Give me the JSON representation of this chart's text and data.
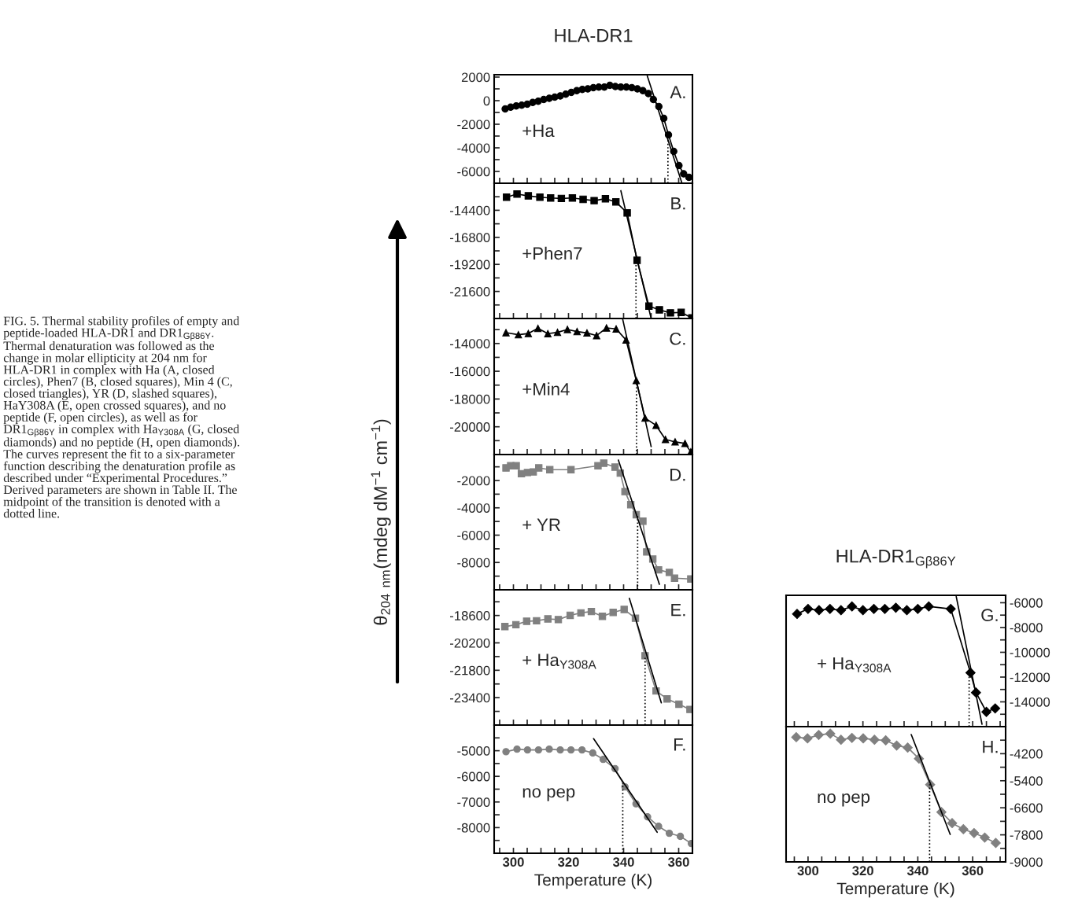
{
  "chart_data": [
    {
      "type": "line",
      "title": "HLA-DR1",
      "marker": "circle",
      "annotations": [
        "A.",
        "+Ha",
        "FIG. 5. Thermal stability profiles of empty and peptide-loaded HLA-DR1 and DR1$_{Gβ86Y}$. Thermal denaturation was followed as the change in molar ellipticity at 204 nm for HLA-DR1 in complex with Ha (A, closed circles), Phen7 (B, closed squares), Min 4 (C, closed triangles), YR (D, slashed squares), HaY308A (E, open crossed squares), and no peptide (F, open circles), as well as for DR1$_{Gβ86Y}$ in complex with Ha$_{Y308A}$ (G, closed diamonds) and no peptide (H, open diamonds). The curves represent the fit to a six-parameter function describing the denaturation profile as described under “Experimental Procedures.” Derived parameters are shown in Table II. The midpoint of the transition is denoted with a dotted line."
      ],
      "series": [
        {
          "color": "#000000",
          "x": [
            297,
            299,
            301,
            303,
            305,
            307,
            309,
            311,
            313,
            315,
            317,
            319,
            321,
            323,
            325,
            327,
            329,
            331,
            333,
            335,
            337,
            339,
            341,
            343,
            345,
            347,
            349,
            350.8,
            352.8,
            354.6,
            356.3,
            358.2,
            360.1,
            361.8,
            363.7
          ],
          "values": [
            -700,
            -550,
            -450,
            -380,
            -300,
            -150,
            -50,
            100,
            200,
            300,
            400,
            550,
            700,
            850,
            950,
            1000,
            1100,
            1150,
            1150,
            1300,
            1200,
            1150,
            1150,
            1100,
            1000,
            850,
            600,
            100,
            -500,
            -1500,
            -2900,
            -4300,
            -5500,
            -6200,
            -6500
          ]
        },
        {
          "color": "#000000",
          "marker": "none",
          "x": [
            348.6,
            361.2
          ],
          "values": [
            2100,
            -7000
          ]
        }
      ],
      "ref_lines": [
        {
          "axis": "x",
          "value": 356.1,
          "line_style": "dotted"
        }
      ],
      "xlim": [
        293,
        365
      ],
      "xticks": [
        {
          "value": 295,
          "label": null
        },
        300,
        {
          "value": 305,
          "label": null
        },
        {
          "value": 310,
          "label": null
        },
        {
          "value": 315,
          "label": null
        },
        320,
        {
          "value": 325,
          "label": null
        },
        {
          "value": 330,
          "label": null
        },
        {
          "value": 335,
          "label": null
        },
        340,
        {
          "value": 345,
          "label": null
        },
        {
          "value": 350,
          "label": null
        },
        {
          "value": 355,
          "label": null
        },
        360
      ],
      "ylim": [
        -7000,
        2200
      ],
      "yticks": [
        2000,
        {
          "value": 1000,
          "label": null
        },
        0,
        {
          "value": -1000,
          "label": null
        },
        -2000,
        {
          "value": -3000,
          "label": null
        },
        -4000,
        {
          "value": -5000,
          "label": null
        },
        -6000
      ],
      "tick_labels": "y"
    },
    {
      "type": "line",
      "marker": "square",
      "annotations": [
        "B.",
        "+Phen7"
      ],
      "series": [
        {
          "color": "#000000",
          "x": [
            297.5,
            301.3,
            305.4,
            309.6,
            313.5,
            317.4,
            321.4,
            325.3,
            329.3,
            333.4,
            337.2,
            341.3,
            344.9,
            349.2,
            353,
            357,
            360.9,
            364.8
          ],
          "values": [
            -13240,
            -12960,
            -13120,
            -13240,
            -13310,
            -13350,
            -13310,
            -13430,
            -13540,
            -13380,
            -13660,
            -14630,
            -18840,
            -22900,
            -23230,
            -23500,
            -23460,
            -23950
          ]
        },
        {
          "color": "#000000",
          "marker": "none",
          "x": [
            339,
            350
          ],
          "values": [
            -12660,
            -24000
          ]
        }
      ],
      "ref_lines": [
        {
          "axis": "x",
          "value": 344.5,
          "line_style": "dotted"
        }
      ],
      "xlim": [
        293,
        365
      ],
      "xticks": [
        {
          "value": 295,
          "label": null
        },
        300,
        {
          "value": 305,
          "label": null
        },
        {
          "value": 310,
          "label": null
        },
        {
          "value": 315,
          "label": null
        },
        320,
        {
          "value": 325,
          "label": null
        },
        {
          "value": 330,
          "label": null
        },
        {
          "value": 335,
          "label": null
        },
        340,
        {
          "value": 345,
          "label": null
        },
        {
          "value": 350,
          "label": null
        },
        {
          "value": 355,
          "label": null
        },
        360
      ],
      "ylim": [
        -24000,
        -12000
      ],
      "yticks": [
        {
          "value": -13200,
          "label": null
        },
        -14400,
        {
          "value": -15600,
          "label": null
        },
        -16800,
        {
          "value": -18000,
          "label": null
        },
        -19200,
        {
          "value": -20400,
          "label": null
        },
        -21600,
        {
          "value": -22800,
          "label": null
        }
      ],
      "tick_labels": "y"
    },
    {
      "type": "line",
      "marker": "triangle",
      "annotations": [
        "C.",
        "+Min4"
      ],
      "series": [
        {
          "color": "#000000",
          "x": [
            297.3,
            301.8,
            305.4,
            308.9,
            312.5,
            316,
            319.6,
            323.1,
            326.7,
            330.2,
            333.8,
            337.3,
            340.9,
            344.6,
            347.8,
            351.8,
            355.2,
            358.7,
            362.3,
            364.4
          ],
          "values": [
            -13220,
            -13370,
            -13280,
            -12910,
            -13290,
            -13200,
            -12990,
            -13140,
            -13240,
            -13430,
            -12880,
            -12950,
            -13750,
            -16670,
            -19370,
            -19900,
            -20910,
            -21090,
            -21200,
            -21810
          ]
        },
        {
          "color": "#000000",
          "marker": "none",
          "x": [
            339.7,
            350
          ],
          "values": [
            -12280,
            -21430
          ]
        }
      ],
      "ref_lines": [
        {
          "axis": "x",
          "value": 344.7,
          "line_style": "dotted"
        }
      ],
      "xlim": [
        293,
        365
      ],
      "xticks": [
        {
          "value": 295,
          "label": null
        },
        300,
        {
          "value": 305,
          "label": null
        },
        {
          "value": 310,
          "label": null
        },
        {
          "value": 315,
          "label": null
        },
        320,
        {
          "value": 325,
          "label": null
        },
        {
          "value": 330,
          "label": null
        },
        {
          "value": 335,
          "label": null
        },
        340,
        {
          "value": 345,
          "label": null
        },
        {
          "value": 350,
          "label": null
        },
        {
          "value": 355,
          "label": null
        },
        360
      ],
      "ylim": [
        -22000,
        -12200
      ],
      "yticks": [
        {
          "value": -13000,
          "label": null
        },
        -14000,
        {
          "value": -15000,
          "label": null
        },
        -16000,
        {
          "value": -17000,
          "label": null
        },
        -18000,
        {
          "value": -19000,
          "label": null
        },
        -20000,
        {
          "value": -21000,
          "label": null
        }
      ],
      "tick_labels": "y"
    },
    {
      "type": "line",
      "marker": "square",
      "ylabel": "θ$_{204 nm}$(mdeg dM$^{−1}$ cm$^{−1}$)",
      "annotations": [
        "D.",
        "+ YR"
      ],
      "series": [
        {
          "color": "#808080",
          "x": [
            297.3,
            299,
            301,
            302.9,
            305.1,
            307.2,
            309.2,
            313.2,
            320.9,
            330.7,
            332.8,
            336.9,
            338.8,
            340.5,
            342.6,
            344.6,
            347,
            348.4,
            350.6,
            352.7,
            356.6,
            358.5,
            364.4
          ],
          "values": [
            -1080,
            -920,
            -920,
            -1500,
            -1420,
            -1370,
            -1080,
            -1210,
            -1210,
            -920,
            -730,
            -1020,
            -1460,
            -2810,
            -3770,
            -4500,
            -4980,
            -7230,
            -7750,
            -8540,
            -8730,
            -9150,
            -9210
          ]
        },
        {
          "color": "#000000",
          "marker": "none",
          "x": [
            338.1,
            353
          ],
          "values": [
            -500,
            -9600
          ]
        }
      ],
      "ref_lines": [
        {
          "axis": "x",
          "value": 345.1,
          "line_style": "dotted"
        }
      ],
      "xlim": [
        293,
        365
      ],
      "xticks": [
        {
          "value": 295,
          "label": null
        },
        300,
        {
          "value": 305,
          "label": null
        },
        {
          "value": 310,
          "label": null
        },
        {
          "value": 315,
          "label": null
        },
        320,
        {
          "value": 325,
          "label": null
        },
        {
          "value": 330,
          "label": null
        },
        {
          "value": 335,
          "label": null
        },
        340,
        {
          "value": 345,
          "label": null
        },
        {
          "value": 350,
          "label": null
        },
        {
          "value": 355,
          "label": null
        },
        360
      ],
      "ylim": [
        -10000,
        -100
      ],
      "yticks": [
        {
          "value": -1000,
          "label": null
        },
        -2000,
        {
          "value": -3000,
          "label": null
        },
        -4000,
        {
          "value": -5000,
          "label": null
        },
        -6000,
        {
          "value": -7000,
          "label": null
        },
        -8000,
        {
          "value": -9000,
          "label": null
        }
      ],
      "tick_labels": "y"
    },
    {
      "type": "line",
      "marker": "square",
      "annotations": [
        "E.",
        "+ Ha$_{Y308A}$"
      ],
      "series": [
        {
          "color": "#808080",
          "x": [
            296.9,
            300.9,
            304.8,
            308.4,
            312.5,
            316.3,
            320.6,
            324.5,
            328.3,
            332.3,
            336.2,
            340.2,
            344.3,
            347.8,
            351.8,
            355.8,
            360.1,
            364.1
          ],
          "values": [
            -19250,
            -19140,
            -18940,
            -18910,
            -18800,
            -18840,
            -18590,
            -18450,
            -18370,
            -18650,
            -18420,
            -18250,
            -18760,
            -20950,
            -23010,
            -23470,
            -23780,
            -24090
          ]
        },
        {
          "color": "#000000",
          "marker": "none",
          "x": [
            342.1,
            353.7
          ],
          "values": [
            -17600,
            -23700
          ]
        }
      ],
      "ref_lines": [
        {
          "axis": "x",
          "value": 347.8,
          "line_style": "dotted"
        }
      ],
      "xlim": [
        293,
        365
      ],
      "xticks": [
        {
          "value": 295,
          "label": null
        },
        300,
        {
          "value": 305,
          "label": null
        },
        {
          "value": 310,
          "label": null
        },
        {
          "value": 315,
          "label": null
        },
        320,
        {
          "value": 325,
          "label": null
        },
        {
          "value": 330,
          "label": null
        },
        {
          "value": 335,
          "label": null
        },
        340,
        {
          "value": 345,
          "label": null
        },
        {
          "value": 350,
          "label": null
        },
        {
          "value": 355,
          "label": null
        },
        360
      ],
      "ylim": [
        -25000,
        -17100
      ],
      "yticks": [
        {
          "value": -17800,
          "label": null
        },
        -18600,
        {
          "value": -19400,
          "label": null
        },
        -20200,
        {
          "value": -21000,
          "label": null
        },
        -21800,
        {
          "value": -22600,
          "label": null
        },
        -23400,
        {
          "value": -24200,
          "label": null
        }
      ],
      "tick_labels": "y"
    },
    {
      "type": "line",
      "marker": "circle",
      "xlabel": "Temperature (K)",
      "annotations": [
        "F.",
        "no pep"
      ],
      "series": [
        {
          "color": "#808080",
          "x": [
            297.3,
            301.3,
            305.1,
            309.1,
            313,
            317,
            320.9,
            324.9,
            328.8,
            332.6,
            336.9,
            340.5,
            344.5,
            348.7,
            352.7,
            356.6,
            360.6,
            364.6
          ],
          "values": [
            -5040,
            -4940,
            -4970,
            -4970,
            -4940,
            -4970,
            -4970,
            -4970,
            -5090,
            -5340,
            -5700,
            -6410,
            -7070,
            -7580,
            -7950,
            -8220,
            -8340,
            -8620
          ]
        },
        {
          "color": "#000000",
          "marker": "none",
          "x": [
            329.1,
            352.2
          ],
          "values": [
            -4530,
            -8180
          ]
        }
      ],
      "ref_lines": [
        {
          "axis": "x",
          "value": 339.7,
          "line_style": "dotted"
        }
      ],
      "xlim": [
        293,
        365
      ],
      "xticks": [
        {
          "value": 295,
          "label": null
        },
        300,
        {
          "value": 305,
          "label": null
        },
        {
          "value": 310,
          "label": null
        },
        {
          "value": 315,
          "label": null
        },
        320,
        {
          "value": 325,
          "label": null
        },
        {
          "value": 330,
          "label": null
        },
        {
          "value": 335,
          "label": null
        },
        340,
        {
          "value": 345,
          "label": null
        },
        {
          "value": 350,
          "label": null
        },
        {
          "value": 355,
          "label": null
        },
        360
      ],
      "ylim": [
        -9000,
        -4000
      ],
      "yticks": [
        {
          "value": -4500,
          "label": null
        },
        -5000,
        {
          "value": -5500,
          "label": null
        },
        -6000,
        {
          "value": -6500,
          "label": null
        },
        -7000,
        {
          "value": -7500,
          "label": null
        },
        -8000,
        {
          "value": -8500,
          "label": null
        }
      ]
    },
    {
      "type": "line",
      "title": "HLA-DR1$_{Gβ86Y}$",
      "marker": "diamond",
      "annotations": [
        "G.",
        "+ Ha$_{Y308A}$"
      ],
      "series": [
        {
          "color": "#000000",
          "x": [
            296,
            300,
            304,
            308,
            312,
            316,
            320,
            324,
            328,
            332,
            336,
            340,
            344,
            352,
            359.2,
            361.2,
            365,
            368.2
          ],
          "values": [
            -6900,
            -6500,
            -6600,
            -6500,
            -6600,
            -6300,
            -6600,
            -6500,
            -6500,
            -6400,
            -6600,
            -6500,
            -6300,
            -6500,
            -11650,
            -13250,
            -14810,
            -14530
          ]
        },
        {
          "color": "#000000",
          "marker": "none",
          "x": [
            354,
            363.4
          ],
          "values": [
            -5500,
            -15810
          ]
        }
      ],
      "ref_lines": [
        {
          "axis": "x",
          "value": 358.7,
          "line_style": "dotted"
        }
      ],
      "xlim": [
        292,
        372
      ],
      "xticks": [
        {
          "value": 295,
          "label": null
        },
        300,
        {
          "value": 305,
          "label": null
        },
        {
          "value": 310,
          "label": null
        },
        {
          "value": 315,
          "label": null
        },
        320,
        {
          "value": 325,
          "label": null
        },
        {
          "value": 330,
          "label": null
        },
        {
          "value": 335,
          "label": null
        },
        340,
        {
          "value": 345,
          "label": null
        },
        {
          "value": 350,
          "label": null
        },
        {
          "value": 355,
          "label": null
        },
        360,
        {
          "value": 365,
          "label": null
        },
        {
          "value": 370,
          "label": null
        }
      ],
      "ylim": [
        -16000,
        -5400
      ],
      "yticks": [
        -6000,
        {
          "value": -7000,
          "label": null
        },
        -8000,
        {
          "value": -9000,
          "label": null
        },
        -10000,
        {
          "value": -11000,
          "label": null
        },
        -12000,
        {
          "value": -13000,
          "label": null
        },
        -14000,
        {
          "value": -15000,
          "label": null
        }
      ],
      "tick_labels": "y"
    },
    {
      "type": "line",
      "marker": "diamond",
      "xlabel": "Temperature (K)",
      "annotations": [
        "H.",
        "no pep"
      ],
      "series": [
        {
          "color": "#808080",
          "x": [
            295.7,
            299.8,
            303.9,
            308.1,
            312,
            316,
            320.1,
            324.2,
            328.3,
            332.3,
            336.3,
            340.4,
            344.5,
            348.6,
            352.5,
            356.6,
            360.5,
            364.4,
            368.4
          ],
          "values": [
            -3470,
            -3520,
            -3370,
            -3310,
            -3580,
            -3500,
            -3520,
            -3580,
            -3610,
            -3840,
            -3930,
            -4420,
            -5570,
            -6790,
            -7280,
            -7550,
            -7720,
            -7920,
            -8160
          ]
        },
        {
          "color": "#000000",
          "marker": "none",
          "x": [
            337.6,
            351.8
          ],
          "values": [
            -3350,
            -7780
          ]
        }
      ],
      "ref_lines": [
        {
          "axis": "x",
          "value": 344.3,
          "line_style": "dotted"
        }
      ],
      "xlim": [
        292,
        372
      ],
      "xticks": [
        {
          "value": 295,
          "label": null
        },
        300,
        {
          "value": 305,
          "label": null
        },
        {
          "value": 310,
          "label": null
        },
        {
          "value": 315,
          "label": null
        },
        320,
        {
          "value": 325,
          "label": null
        },
        {
          "value": 330,
          "label": null
        },
        {
          "value": 335,
          "label": null
        },
        340,
        {
          "value": 345,
          "label": null
        },
        {
          "value": 350,
          "label": null
        },
        {
          "value": 355,
          "label": null
        },
        360,
        {
          "value": 365,
          "label": null
        },
        {
          "value": 370,
          "label": null
        }
      ],
      "ylim": [
        -9000,
        -3000
      ],
      "yticks": [
        {
          "value": -3600,
          "label": null
        },
        -4200,
        {
          "value": -4800,
          "label": null
        },
        -5400,
        {
          "value": -6000,
          "label": null
        },
        -6600,
        {
          "value": -7200,
          "label": null
        },
        -7800,
        {
          "value": -8400,
          "label": null
        },
        -9000
      ]
    }
  ]
}
